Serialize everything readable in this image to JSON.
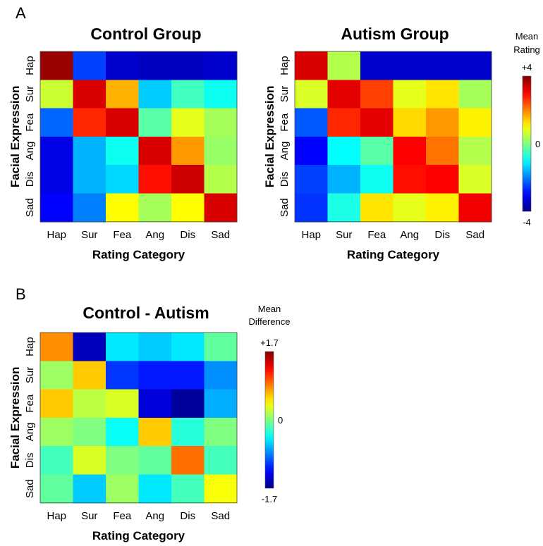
{
  "panels": [
    {
      "label": "A"
    },
    {
      "label": "B"
    }
  ],
  "chart_data": [
    {
      "type": "heatmap",
      "title": "Control Group",
      "xlabel": "Rating Category",
      "ylabel": "Facial Expression",
      "x": [
        "Hap",
        "Sur",
        "Fea",
        "Ang",
        "Dis",
        "Sad"
      ],
      "y": [
        "Hap",
        "Sur",
        "Fea",
        "Ang",
        "Dis",
        "Sad"
      ],
      "vmin": -4,
      "vmax": 4,
      "values": [
        [
          3.8,
          -2.5,
          -3.4,
          -3.5,
          -3.5,
          -3.4
        ],
        [
          0.6,
          3.3,
          1.6,
          -1.4,
          -0.5,
          -0.9
        ],
        [
          -2.2,
          2.7,
          3.3,
          -0.3,
          0.8,
          0.3
        ],
        [
          -3.2,
          -1.6,
          -0.9,
          3.3,
          1.8,
          0.2
        ],
        [
          -3.2,
          -1.6,
          -1.3,
          2.9,
          3.4,
          0.4
        ],
        [
          -3.0,
          -2.0,
          1.0,
          0.3,
          1.0,
          3.3
        ]
      ]
    },
    {
      "type": "heatmap",
      "title": "Autism Group",
      "xlabel": "Rating Category",
      "ylabel": "Facial Expression",
      "x": [
        "Hap",
        "Sur",
        "Fea",
        "Ang",
        "Dis",
        "Sad"
      ],
      "y": [
        "Hap",
        "Sur",
        "Fea",
        "Ang",
        "Dis",
        "Sad"
      ],
      "vmin": -4,
      "vmax": 4,
      "values": [
        [
          3.3,
          0.4,
          -3.4,
          -3.4,
          -3.4,
          -3.4
        ],
        [
          0.7,
          3.2,
          2.5,
          0.8,
          1.2,
          0.3
        ],
        [
          -2.3,
          2.7,
          3.2,
          1.3,
          1.8,
          1.1
        ],
        [
          -3.0,
          -1.0,
          -0.3,
          3.0,
          2.1,
          0.4
        ],
        [
          -2.5,
          -1.6,
          -0.9,
          2.9,
          3.0,
          0.7
        ],
        [
          -2.6,
          -0.8,
          1.2,
          0.8,
          1.1,
          3.1
        ]
      ]
    },
    {
      "type": "heatmap",
      "title": "Control - Autism",
      "xlabel": "Rating Category",
      "ylabel": "Facial Expression",
      "x": [
        "Hap",
        "Sur",
        "Fea",
        "Ang",
        "Dis",
        "Sad"
      ],
      "y": [
        "Hap",
        "Sur",
        "Fea",
        "Ang",
        "Dis",
        "Sad"
      ],
      "vmin": -1.7,
      "vmax": 1.7,
      "values": [
        [
          0.8,
          -1.5,
          -0.5,
          -0.6,
          -0.5,
          -0.1
        ],
        [
          0.1,
          0.6,
          -1.1,
          -1.2,
          -1.2,
          -0.8
        ],
        [
          0.6,
          0.2,
          0.3,
          -1.4,
          -1.6,
          -0.7
        ],
        [
          0.1,
          0.0,
          -0.4,
          0.6,
          -0.3,
          0.0
        ],
        [
          -0.2,
          0.3,
          0.0,
          -0.1,
          0.9,
          -0.2
        ],
        [
          -0.1,
          -0.6,
          0.1,
          -0.5,
          -0.2,
          0.4
        ]
      ]
    }
  ],
  "colorbars": [
    {
      "title_lines": [
        "Mean",
        "Rating"
      ],
      "max_label": "+4",
      "mid_label": "0",
      "min_label": "-4"
    },
    {
      "title_lines": [
        "Mean",
        "Difference"
      ],
      "max_label": "+1.7",
      "mid_label": "0",
      "min_label": "-1.7"
    }
  ]
}
